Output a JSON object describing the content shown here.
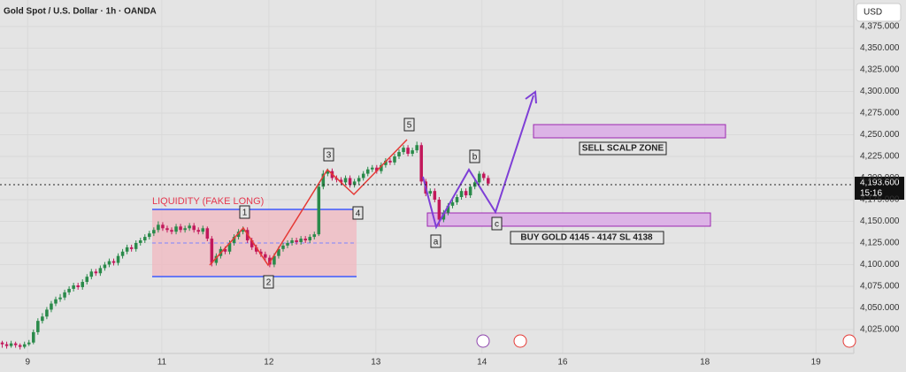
{
  "chart_data": {
    "type": "candlestick",
    "title": "Gold Spot / U.S. Dollar · 1h · OANDA",
    "currency": "USD",
    "candles": [
      [
        4010,
        4012,
        4004,
        4008
      ],
      [
        4008,
        4011,
        4003,
        4006
      ],
      [
        4006,
        4012,
        4004,
        4009
      ],
      [
        4009,
        4011,
        4004,
        4007
      ],
      [
        4007,
        4009,
        4002,
        4005
      ],
      [
        4005,
        4011,
        4003,
        4008
      ],
      [
        4008,
        4013,
        4006,
        4010
      ],
      [
        4010,
        4025,
        4008,
        4022
      ],
      [
        4022,
        4038,
        4019,
        4035
      ],
      [
        4035,
        4044,
        4032,
        4040
      ],
      [
        4040,
        4051,
        4037,
        4048
      ],
      [
        4048,
        4058,
        4045,
        4055
      ],
      [
        4055,
        4063,
        4052,
        4060
      ],
      [
        4060,
        4066,
        4057,
        4062
      ],
      [
        4062,
        4071,
        4059,
        4068
      ],
      [
        4068,
        4075,
        4065,
        4072
      ],
      [
        4072,
        4079,
        4069,
        4076
      ],
      [
        4076,
        4079,
        4071,
        4074
      ],
      [
        4074,
        4083,
        4071,
        4080
      ],
      [
        4080,
        4089,
        4077,
        4086
      ],
      [
        4086,
        4095,
        4083,
        4092
      ],
      [
        4092,
        4095,
        4087,
        4090
      ],
      [
        4090,
        4099,
        4087,
        4096
      ],
      [
        4096,
        4103,
        4093,
        4100
      ],
      [
        4100,
        4107,
        4097,
        4104
      ],
      [
        4104,
        4107,
        4099,
        4102
      ],
      [
        4102,
        4113,
        4099,
        4110
      ],
      [
        4110,
        4118,
        4107,
        4115
      ],
      [
        4115,
        4123,
        4112,
        4120
      ],
      [
        4120,
        4123,
        4115,
        4118
      ],
      [
        4118,
        4128,
        4115,
        4125
      ],
      [
        4125,
        4131,
        4122,
        4128
      ],
      [
        4128,
        4135,
        4125,
        4132
      ],
      [
        4132,
        4139,
        4129,
        4136
      ],
      [
        4136,
        4143,
        4133,
        4140
      ],
      [
        4140,
        4150,
        4137,
        4146
      ],
      [
        4146,
        4149,
        4139,
        4142
      ],
      [
        4142,
        4145,
        4137,
        4140
      ],
      [
        4140,
        4143,
        4135,
        4138
      ],
      [
        4138,
        4147,
        4135,
        4144
      ],
      [
        4144,
        4147,
        4137,
        4140
      ],
      [
        4140,
        4145,
        4137,
        4142
      ],
      [
        4142,
        4148,
        4139,
        4145
      ],
      [
        4145,
        4148,
        4137,
        4140
      ],
      [
        4140,
        4143,
        4135,
        4138
      ],
      [
        4138,
        4145,
        4135,
        4142
      ],
      [
        4142,
        4144,
        4127,
        4130
      ],
      [
        4130,
        4133,
        4098,
        4102
      ],
      [
        4102,
        4113,
        4099,
        4110
      ],
      [
        4110,
        4121,
        4107,
        4118
      ],
      [
        4118,
        4121,
        4112,
        4115
      ],
      [
        4115,
        4128,
        4112,
        4125
      ],
      [
        4125,
        4135,
        4122,
        4132
      ],
      [
        4132,
        4141,
        4129,
        4138
      ],
      [
        4138,
        4144,
        4135,
        4140
      ],
      [
        4140,
        4143,
        4125,
        4128
      ],
      [
        4128,
        4131,
        4117,
        4120
      ],
      [
        4120,
        4123,
        4112,
        4115
      ],
      [
        4115,
        4118,
        4109,
        4112
      ],
      [
        4112,
        4115,
        4105,
        4108
      ],
      [
        4108,
        4111,
        4097,
        4100
      ],
      [
        4100,
        4113,
        4097,
        4110
      ],
      [
        4110,
        4121,
        4107,
        4118
      ],
      [
        4118,
        4125,
        4115,
        4122
      ],
      [
        4122,
        4128,
        4119,
        4125
      ],
      [
        4125,
        4131,
        4122,
        4128
      ],
      [
        4128,
        4131,
        4123,
        4126
      ],
      [
        4126,
        4133,
        4123,
        4130
      ],
      [
        4130,
        4133,
        4125,
        4128
      ],
      [
        4128,
        4135,
        4125,
        4132
      ],
      [
        4132,
        4138,
        4129,
        4135
      ],
      [
        4135,
        4194,
        4133,
        4190
      ],
      [
        4190,
        4209,
        4187,
        4205
      ],
      [
        4205,
        4211,
        4202,
        4208
      ],
      [
        4208,
        4211,
        4197,
        4200
      ],
      [
        4200,
        4203,
        4195,
        4198
      ],
      [
        4198,
        4201,
        4192,
        4195
      ],
      [
        4195,
        4203,
        4192,
        4200
      ],
      [
        4200,
        4203,
        4189,
        4192
      ],
      [
        4192,
        4199,
        4189,
        4196
      ],
      [
        4196,
        4203,
        4193,
        4200
      ],
      [
        4200,
        4208,
        4197,
        4205
      ],
      [
        4205,
        4213,
        4202,
        4210
      ],
      [
        4210,
        4215,
        4207,
        4212
      ],
      [
        4212,
        4215,
        4205,
        4208
      ],
      [
        4208,
        4218,
        4205,
        4215
      ],
      [
        4215,
        4223,
        4212,
        4220
      ],
      [
        4220,
        4223,
        4215,
        4218
      ],
      [
        4218,
        4228,
        4215,
        4225
      ],
      [
        4225,
        4233,
        4222,
        4230
      ],
      [
        4230,
        4238,
        4227,
        4235
      ],
      [
        4235,
        4238,
        4225,
        4228
      ],
      [
        4228,
        4235,
        4225,
        4232
      ],
      [
        4232,
        4242,
        4229,
        4238
      ],
      [
        4238,
        4241,
        4193,
        4196
      ],
      [
        4196,
        4199,
        4179,
        4182
      ],
      [
        4182,
        4188,
        4179,
        4185
      ],
      [
        4185,
        4188,
        4172,
        4175
      ],
      [
        4175,
        4178,
        4145,
        4152
      ],
      [
        4152,
        4163,
        4149,
        4160
      ],
      [
        4160,
        4171,
        4157,
        4168
      ],
      [
        4168,
        4175,
        4165,
        4172
      ],
      [
        4172,
        4181,
        4169,
        4178
      ],
      [
        4178,
        4188,
        4175,
        4185
      ],
      [
        4185,
        4188,
        4177,
        4180
      ],
      [
        4180,
        4193,
        4177,
        4190
      ],
      [
        4190,
        4198,
        4187,
        4195
      ],
      [
        4195,
        4208,
        4192,
        4205
      ],
      [
        4205,
        4207,
        4197,
        4200
      ],
      [
        4200,
        4203,
        4191,
        4193.6
      ]
    ],
    "up_color": "#2a8a4a",
    "down_color": "#c2185b",
    "xlim": [
      0,
      191.5
    ],
    "xticks": [
      {
        "value": 6.2,
        "label": "9"
      },
      {
        "value": 36.3,
        "label": "11"
      },
      {
        "value": 60.3,
        "label": "12"
      },
      {
        "value": 84.3,
        "label": "13"
      },
      {
        "value": 108.1,
        "label": "14"
      },
      {
        "value": 126.2,
        "label": "16"
      },
      {
        "value": 158.1,
        "label": "18"
      },
      {
        "value": 183,
        "label": "19"
      }
    ],
    "ylim": [
      3997.4,
      4405.6
    ],
    "yticks": [
      {
        "value": 4025,
        "label": "4,025.000"
      },
      {
        "value": 4050,
        "label": "4,050.000"
      },
      {
        "value": 4075,
        "label": "4,075.000"
      },
      {
        "value": 4100,
        "label": "4,100.000"
      },
      {
        "value": 4125,
        "label": "4,125.000"
      },
      {
        "value": 4150,
        "label": "4,150.000"
      },
      {
        "value": 4175,
        "label": "4,175.000"
      },
      {
        "value": 4200,
        "label": "4,200.000"
      },
      {
        "value": 4225,
        "label": "4,225.000"
      },
      {
        "value": 4250,
        "label": "4,250.000"
      },
      {
        "value": 4275,
        "label": "4,275.000"
      },
      {
        "value": 4300,
        "label": "4,300.000"
      },
      {
        "value": 4325,
        "label": "4,325.000"
      },
      {
        "value": 4350,
        "label": "4,350.000"
      },
      {
        "value": 4375,
        "label": "4,375.000"
      }
    ],
    "grid": true,
    "last_price": {
      "value": 4193.6,
      "label": "4,193.600"
    },
    "countdown": "15:16",
    "annotations": {
      "liquidity": "LIQUIDITY (FAKE LONG)",
      "sell_zone": "SELL SCALP ZONE",
      "buy_zone": "BUY GOLD 4145 - 4147 SL 4138",
      "waves": [
        "1",
        "2",
        "3",
        "4",
        "5",
        "a",
        "b",
        "c"
      ]
    }
  }
}
